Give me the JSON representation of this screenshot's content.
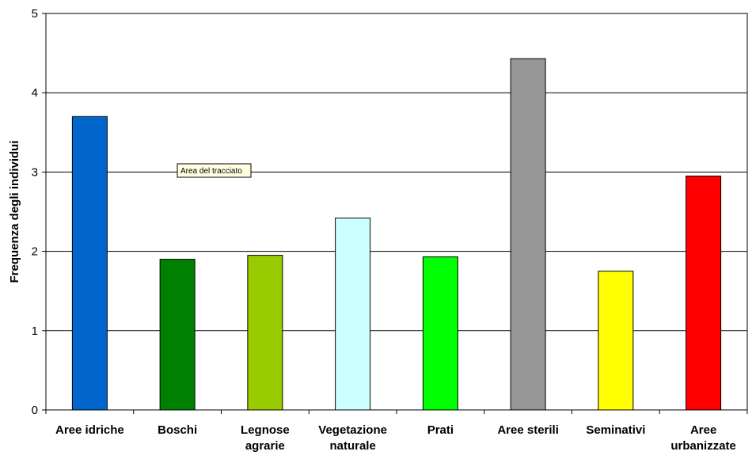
{
  "chart_data": {
    "type": "bar",
    "categories": [
      "Aree idriche",
      "Boschi",
      "Legnose agrarie",
      "Vegetazione naturale",
      "Prati",
      "Aree sterili",
      "Seminativi",
      "Aree urbanizzate"
    ],
    "category_lines": [
      [
        "Aree idriche"
      ],
      [
        "Boschi"
      ],
      [
        "Legnose",
        "agrarie"
      ],
      [
        "Vegetazione",
        "naturale"
      ],
      [
        "Prati"
      ],
      [
        "Aree sterili"
      ],
      [
        "Seminativi"
      ],
      [
        "Aree",
        "urbanizzate"
      ]
    ],
    "values": [
      3.7,
      1.9,
      1.95,
      2.42,
      1.93,
      4.43,
      1.75,
      2.95
    ],
    "colors": [
      "#0066CC",
      "#008000",
      "#99CC00",
      "#CCFFFF",
      "#00FF00",
      "#969696",
      "#FFFF00",
      "#FF0000"
    ],
    "ylabel": "Frequenza degli individui",
    "xlabel": "",
    "ylim": [
      0,
      5
    ],
    "yticks": [
      0,
      1,
      2,
      3,
      4,
      5
    ],
    "grid": true,
    "legend": "none"
  },
  "tooltip": {
    "text": "Area del tracciato"
  }
}
